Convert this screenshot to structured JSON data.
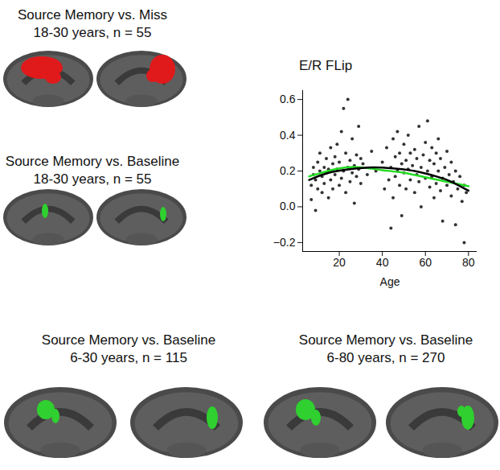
{
  "panels": [
    {
      "title": "Source Memory vs. Miss",
      "subtitle": "18-30 years, n = 55",
      "color": "#e0191b"
    },
    {
      "title": "Source Memory vs. Baseline",
      "subtitle": "18-30 years, n = 55",
      "color": "#2fd02f"
    },
    {
      "title": "Source Memory vs. Baseline",
      "subtitle": "6-30 years, n = 115",
      "color": "#2fd02f"
    },
    {
      "title": "Source Memory vs. Baseline",
      "subtitle": "6-80 years, n = 270",
      "color": "#2fd02f"
    }
  ],
  "chart_data": {
    "type": "scatter",
    "title": "E/R FLip",
    "x_label": "Age",
    "xlim": [
      3,
      84
    ],
    "xticks": [
      20,
      40,
      60,
      80
    ],
    "ylim": [
      -0.25,
      0.65
    ],
    "yticks": [
      {
        "value": -0.2,
        "label": "−0.2"
      },
      {
        "value": 0,
        "label": "0.0"
      },
      0.2,
      0.4,
      0.6
    ],
    "series": [
      {
        "type": "scatter",
        "color": "#333333",
        "x": [
          7,
          7,
          8,
          8,
          9,
          9,
          10,
          10,
          11,
          11,
          12,
          12,
          13,
          13,
          14,
          14,
          15,
          15,
          16,
          16,
          17,
          17,
          18,
          18,
          19,
          19,
          20,
          20,
          21,
          21,
          22,
          22,
          23,
          23,
          24,
          24,
          25,
          25,
          26,
          26,
          27,
          27,
          28,
          28,
          29,
          29,
          30,
          30,
          31,
          33,
          35,
          37,
          40,
          41,
          42,
          43,
          44,
          44,
          45,
          45,
          46,
          46,
          47,
          47,
          48,
          48,
          49,
          49,
          50,
          50,
          51,
          51,
          52,
          52,
          53,
          53,
          54,
          55,
          55,
          56,
          56,
          57,
          57,
          58,
          58,
          59,
          60,
          60,
          61,
          61,
          62,
          62,
          63,
          63,
          64,
          64,
          65,
          65,
          66,
          66,
          67,
          67,
          68,
          68,
          69,
          70,
          70,
          71,
          72,
          72,
          73,
          74,
          74,
          75,
          76,
          77,
          78,
          78,
          79
        ],
        "values": [
          0.12,
          0.04,
          0.18,
          0.22,
          -0.02,
          0.15,
          0.25,
          0.1,
          0.2,
          0.3,
          0.08,
          0.17,
          0.22,
          0.13,
          0.27,
          0.19,
          0.05,
          0.21,
          0.33,
          0.15,
          0.24,
          0.1,
          0.18,
          0.28,
          0.21,
          0.35,
          0.12,
          0.25,
          0.16,
          0.42,
          0.55,
          0.2,
          0.3,
          0.08,
          0.6,
          0.22,
          0.26,
          0.14,
          0.38,
          0.19,
          0.23,
          0.02,
          0.29,
          0.17,
          0.21,
          0.45,
          0.13,
          0.27,
          0.24,
          0.18,
          0.31,
          0.2,
          0.25,
          0.1,
          0.33,
          0.15,
          -0.12,
          0.22,
          0.38,
          0.05,
          0.28,
          0.17,
          0.42,
          0.2,
          0.12,
          0.3,
          0.24,
          -0.05,
          0.35,
          0.19,
          0.26,
          0.1,
          0.4,
          0.21,
          0.15,
          0.3,
          0.23,
          0.08,
          0.32,
          0.18,
          0.27,
          0.45,
          0.14,
          0.22,
          0.0,
          0.29,
          0.16,
          0.36,
          0.48,
          0.2,
          0.11,
          0.26,
          0.33,
          0.17,
          0.05,
          0.24,
          0.3,
          0.13,
          0.2,
          0.38,
          0.09,
          0.27,
          0.16,
          -0.08,
          0.22,
          0.31,
          0.12,
          0.18,
          0.25,
          0.06,
          0.14,
          0.2,
          -0.1,
          0.1,
          0.17,
          0.03,
          -0.2,
          0.12,
          0.08
        ]
      },
      {
        "type": "line",
        "color": "#22dd22",
        "x": [
          6,
          20,
          30,
          40,
          50,
          60,
          70,
          80
        ],
        "values": [
          0.17,
          0.215,
          0.22,
          0.205,
          0.19,
          0.165,
          0.14,
          0.115
        ]
      },
      {
        "type": "line",
        "color": "#000000",
        "x": [
          6,
          15,
          25,
          35,
          45,
          55,
          65,
          72,
          80
        ],
        "values": [
          0.15,
          0.19,
          0.21,
          0.22,
          0.215,
          0.2,
          0.17,
          0.14,
          0.09
        ]
      }
    ]
  }
}
